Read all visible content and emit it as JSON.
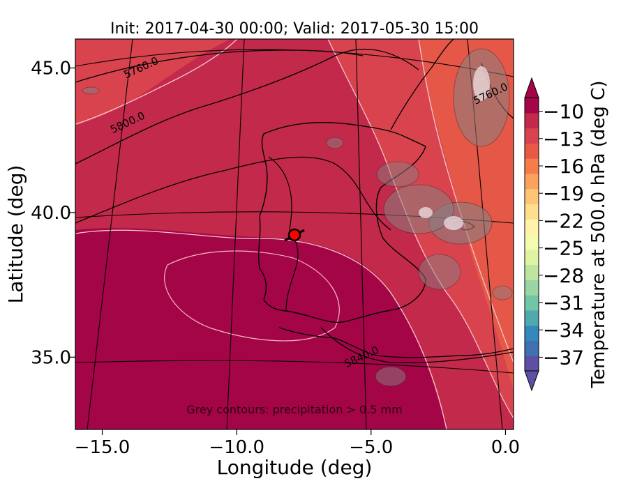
{
  "chart_data": {
    "type": "heatmap",
    "title": "Init: 2017-04-30 00:00; Valid: 2017-05-30 15:00",
    "xlabel": "Longitude (deg)",
    "ylabel": "Latitude (deg)",
    "xlim": [
      -16.0,
      0.3
    ],
    "ylim": [
      32.5,
      46.0
    ],
    "x_ticks": [
      -15.0,
      -10.0,
      -5.0,
      0.0
    ],
    "x_tick_labels": [
      "−15.0",
      "−10.0",
      "−5.0",
      "0.0"
    ],
    "y_ticks": [
      35.0,
      40.0,
      45.0
    ],
    "y_tick_labels": [
      "35.0",
      "40.0",
      "45.0"
    ],
    "colorbar": {
      "label": "Temperature at 500.0 hPa (deg C)",
      "min": -38.5,
      "max": -8.5,
      "ticks": [
        -10,
        -13,
        -16,
        -19,
        -22,
        -25,
        -28,
        -31,
        -34,
        -37
      ],
      "tick_labels": [
        "−10",
        "−13",
        "−16",
        "−19",
        "−22",
        "−25",
        "−28",
        "−31",
        "−34",
        "−37"
      ],
      "colors": [
        "#5e4fa2",
        "#3f70b1",
        "#3389bc",
        "#50a9af",
        "#71c6a5",
        "#99d6a4",
        "#bee5a0",
        "#e0f3a1",
        "#f4faae",
        "#fff3ab",
        "#fedf8d",
        "#fdc574",
        "#fba25c",
        "#f67d4a",
        "#e85a47",
        "#d8434e",
        "#c2294a",
        "#a40547"
      ]
    },
    "height_contour_labels": [
      {
        "text": "5760.0",
        "lon": -13.5,
        "lat": 44.9
      },
      {
        "text": "5800.0",
        "lon": -14.0,
        "lat": 43.0
      },
      {
        "text": "5760.0",
        "lon": -0.5,
        "lat": 44.0
      },
      {
        "text": "5840.0",
        "lon": -5.3,
        "lat": 34.9
      }
    ],
    "marker": {
      "lon": -7.6,
      "lat": 39.3,
      "color": "#ff0000"
    },
    "annotation": "Grey contours: precipitation > 0.5 mm"
  }
}
